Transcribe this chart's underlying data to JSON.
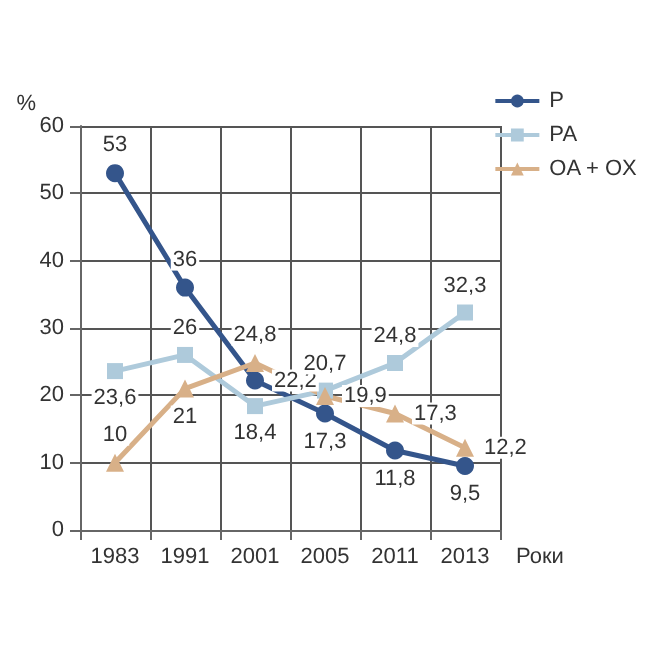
{
  "chart_data": {
    "type": "line",
    "categories": [
      "1983",
      "1991",
      "2001",
      "2005",
      "2011",
      "2013"
    ],
    "xlabel": "Роки",
    "ylabel": "%",
    "ylim": [
      0,
      60
    ],
    "yticks": [
      0,
      10,
      20,
      30,
      40,
      50,
      60
    ],
    "grid": true,
    "legend": "top right",
    "series": [
      {
        "name": "P",
        "color": "#34558b",
        "marker": "circle",
        "values": [
          53,
          36,
          22.2,
          17.3,
          11.8,
          9.5
        ],
        "value_labels": [
          "53",
          "36",
          "22,2",
          "17,3",
          "11,8",
          "9,5"
        ]
      },
      {
        "name": "PA",
        "color": "#aecadb",
        "marker": "square",
        "values": [
          23.6,
          26,
          18.4,
          20.7,
          24.8,
          32.3
        ],
        "value_labels": [
          "23,6",
          "26",
          "18,4",
          "20,7",
          "24,8",
          "32,3"
        ]
      },
      {
        "name": "OA + OX",
        "color": "#d8b088",
        "marker": "triangle",
        "values": [
          10,
          21,
          24.8,
          19.9,
          17.3,
          12.2
        ],
        "value_labels": [
          "10",
          "21",
          "24,8",
          "19,9",
          "17,3",
          "12,2"
        ]
      }
    ]
  }
}
